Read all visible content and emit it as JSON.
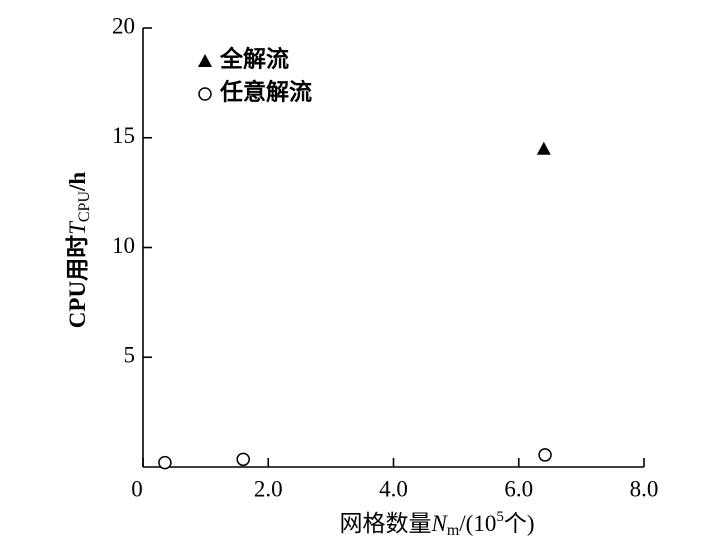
{
  "chart_data": {
    "type": "scatter",
    "xlabel": [
      "网格数量",
      "N",
      "m",
      "/(10",
      "5",
      "个)"
    ],
    "ylabel": [
      "CPU用时",
      "T",
      "CPU",
      "/h"
    ],
    "xlim": [
      0,
      8
    ],
    "ylim": [
      0,
      20
    ],
    "xticks": [
      0,
      {
        "value": 2,
        "label": "2.0"
      },
      {
        "value": 4,
        "label": "4.0"
      },
      {
        "value": 6,
        "label": "6.0"
      },
      {
        "value": 8,
        "label": "8.0"
      }
    ],
    "yticks": [
      5,
      10,
      15,
      20
    ],
    "series": [
      {
        "name": "全解流",
        "color": "#000000",
        "marker": "triangle",
        "x": [
          6.4
        ],
        "values": [
          14.5
        ]
      },
      {
        "name": "任意解流",
        "color": "#000000",
        "marker": "circle",
        "x": [
          0.35,
          1.6,
          6.42
        ],
        "values": [
          0.2,
          0.35,
          0.55
        ]
      }
    ]
  }
}
